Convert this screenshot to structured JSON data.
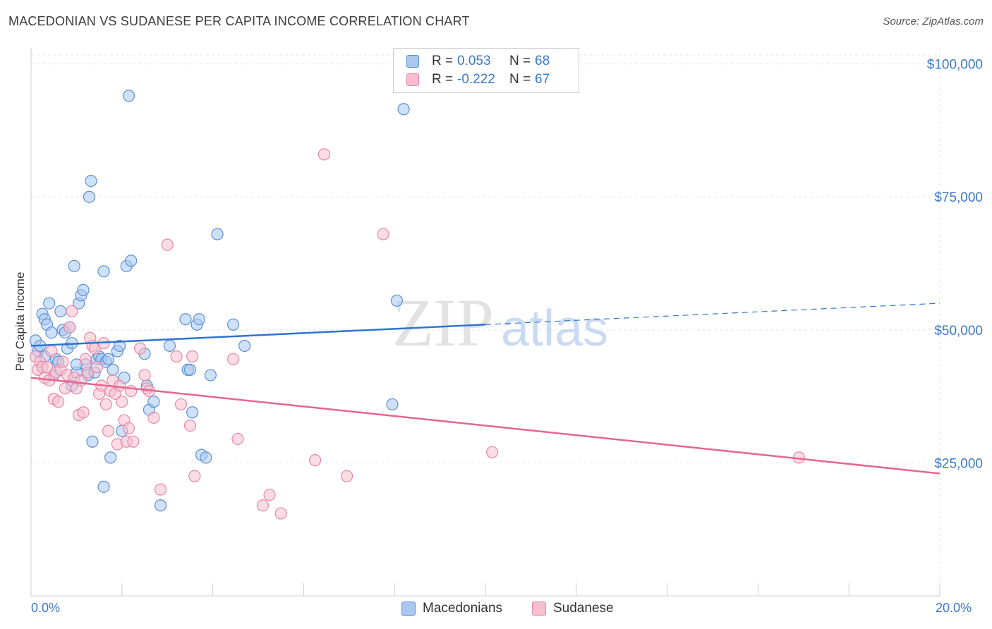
{
  "title": "MACEDONIAN VS SUDANESE PER CAPITA INCOME CORRELATION CHART",
  "source": "Source: ZipAtlas.com",
  "watermark": {
    "zip": "ZIP",
    "atlas": "atlas"
  },
  "legend_top": {
    "rows": [
      {
        "r_label": "R =",
        "r_value": "0.053",
        "n_label": "N =",
        "n_value": "68"
      },
      {
        "r_label": "R =",
        "r_value": "-0.222",
        "n_label": "N =",
        "n_value": "67"
      }
    ]
  },
  "legend_bottom": {
    "macedonians": "Macedonians",
    "sudanese": "Sudanese"
  },
  "x_tick_labels": {
    "left": "0.0%",
    "right": "20.0%"
  },
  "colors": {
    "blue_fill": "#a8c8f0",
    "blue_stroke": "#5b8fd6",
    "blue_line": "#2f74d0",
    "pink_fill": "#f7bfd0",
    "pink_stroke": "#e887a6",
    "pink_line": "#e56591",
    "axis_label": "#3a78c8"
  },
  "chart_data": {
    "type": "scatter",
    "title": "MACEDONIAN VS SUDANESE PER CAPITA INCOME CORRELATION CHART",
    "xlabel": "",
    "ylabel": "Per Capita Income",
    "xlim": [
      0,
      20
    ],
    "ylim": [
      0,
      103000
    ],
    "y_ticks": [
      {
        "value": 25000,
        "label": "$25,000"
      },
      {
        "value": 50000,
        "label": "$50,000"
      },
      {
        "value": 75000,
        "label": "$75,000"
      },
      {
        "value": 100000,
        "label": "$100,000"
      }
    ],
    "x_tick_values": [
      0,
      2,
      4,
      6,
      8,
      10,
      12,
      14,
      16,
      18,
      20
    ],
    "grid": true,
    "legend_position": "bottom",
    "series": [
      {
        "name": "Macedonians",
        "color": "#a8c8f0",
        "trend": {
          "x_start": 0,
          "y_start": 47000,
          "x_solid_end": 10,
          "y_solid_end": 51000,
          "x_end": 20,
          "y_end": 55000,
          "dashed_after_solid": true
        },
        "points": [
          [
            0.1,
            48000
          ],
          [
            0.15,
            46000
          ],
          [
            0.2,
            47000
          ],
          [
            0.25,
            53000
          ],
          [
            0.3,
            52000
          ],
          [
            0.35,
            51000
          ],
          [
            0.4,
            55000
          ],
          [
            0.45,
            49500
          ],
          [
            0.5,
            41500
          ],
          [
            0.55,
            44500
          ],
          [
            0.6,
            44000
          ],
          [
            0.65,
            53500
          ],
          [
            0.7,
            50000
          ],
          [
            0.75,
            49500
          ],
          [
            0.8,
            46500
          ],
          [
            0.85,
            50500
          ],
          [
            0.9,
            39500
          ],
          [
            0.95,
            62000
          ],
          [
            1.0,
            42000
          ],
          [
            1.05,
            55000
          ],
          [
            1.1,
            56500
          ],
          [
            1.15,
            57500
          ],
          [
            1.2,
            43500
          ],
          [
            1.25,
            41500
          ],
          [
            1.28,
            75000
          ],
          [
            1.32,
            78000
          ],
          [
            1.35,
            29000
          ],
          [
            1.4,
            42000
          ],
          [
            1.45,
            44500
          ],
          [
            1.5,
            45000
          ],
          [
            1.55,
            44500
          ],
          [
            1.6,
            61000
          ],
          [
            1.65,
            44000
          ],
          [
            1.7,
            44500
          ],
          [
            1.75,
            26000
          ],
          [
            1.8,
            42500
          ],
          [
            1.9,
            46000
          ],
          [
            1.95,
            47000
          ],
          [
            2.0,
            31000
          ],
          [
            2.05,
            41000
          ],
          [
            2.1,
            62000
          ],
          [
            2.15,
            94000
          ],
          [
            2.2,
            63000
          ],
          [
            1.6,
            20500
          ],
          [
            2.5,
            45500
          ],
          [
            2.55,
            39500
          ],
          [
            2.6,
            35000
          ],
          [
            2.7,
            36500
          ],
          [
            2.85,
            17000
          ],
          [
            3.05,
            47000
          ],
          [
            3.4,
            52000
          ],
          [
            3.45,
            42500
          ],
          [
            3.55,
            34500
          ],
          [
            3.65,
            51000
          ],
          [
            3.7,
            52000
          ],
          [
            3.75,
            26500
          ],
          [
            3.85,
            26000
          ],
          [
            3.95,
            41500
          ],
          [
            4.45,
            51000
          ],
          [
            4.7,
            47000
          ],
          [
            8.05,
            55500
          ],
          [
            7.95,
            36000
          ],
          [
            8.2,
            91500
          ],
          [
            4.1,
            68000
          ],
          [
            3.5,
            42500
          ],
          [
            0.3,
            45000
          ],
          [
            0.9,
            47500
          ],
          [
            1.0,
            43500
          ]
        ]
      },
      {
        "name": "Sudanese",
        "color": "#f7bfd0",
        "trend": {
          "x_start": 0,
          "y_start": 41000,
          "x_end": 20,
          "y_end": 23000
        },
        "points": [
          [
            0.1,
            45000
          ],
          [
            0.15,
            42500
          ],
          [
            0.2,
            44000
          ],
          [
            0.25,
            43000
          ],
          [
            0.3,
            41000
          ],
          [
            0.35,
            43000
          ],
          [
            0.4,
            40500
          ],
          [
            0.45,
            46000
          ],
          [
            0.5,
            37000
          ],
          [
            0.55,
            42000
          ],
          [
            0.6,
            36500
          ],
          [
            0.65,
            42500
          ],
          [
            0.7,
            44000
          ],
          [
            0.75,
            39000
          ],
          [
            0.8,
            41500
          ],
          [
            0.85,
            50500
          ],
          [
            0.9,
            53500
          ],
          [
            0.95,
            41000
          ],
          [
            1.0,
            39000
          ],
          [
            1.05,
            34000
          ],
          [
            1.1,
            40500
          ],
          [
            1.15,
            34500
          ],
          [
            1.2,
            44500
          ],
          [
            1.25,
            42000
          ],
          [
            1.3,
            48500
          ],
          [
            1.35,
            47000
          ],
          [
            1.4,
            46500
          ],
          [
            1.45,
            43000
          ],
          [
            1.5,
            38000
          ],
          [
            1.55,
            39500
          ],
          [
            1.6,
            47500
          ],
          [
            1.65,
            36000
          ],
          [
            1.7,
            31000
          ],
          [
            1.75,
            38500
          ],
          [
            1.8,
            40500
          ],
          [
            1.85,
            38000
          ],
          [
            1.9,
            28500
          ],
          [
            1.95,
            39500
          ],
          [
            2.0,
            36500
          ],
          [
            2.05,
            33000
          ],
          [
            2.1,
            29000
          ],
          [
            2.15,
            31500
          ],
          [
            2.2,
            38500
          ],
          [
            2.25,
            29000
          ],
          [
            2.4,
            46500
          ],
          [
            2.5,
            41500
          ],
          [
            2.55,
            39000
          ],
          [
            2.6,
            38500
          ],
          [
            2.7,
            33500
          ],
          [
            2.85,
            20000
          ],
          [
            3.0,
            66000
          ],
          [
            3.2,
            45000
          ],
          [
            3.3,
            36000
          ],
          [
            3.5,
            32000
          ],
          [
            3.55,
            45000
          ],
          [
            3.6,
            22500
          ],
          [
            4.45,
            44500
          ],
          [
            4.55,
            29500
          ],
          [
            5.1,
            17000
          ],
          [
            5.25,
            19000
          ],
          [
            5.5,
            15500
          ],
          [
            6.25,
            25500
          ],
          [
            6.45,
            83000
          ],
          [
            6.95,
            22500
          ],
          [
            7.75,
            68000
          ],
          [
            10.15,
            27000
          ],
          [
            16.9,
            26000
          ]
        ]
      }
    ]
  }
}
